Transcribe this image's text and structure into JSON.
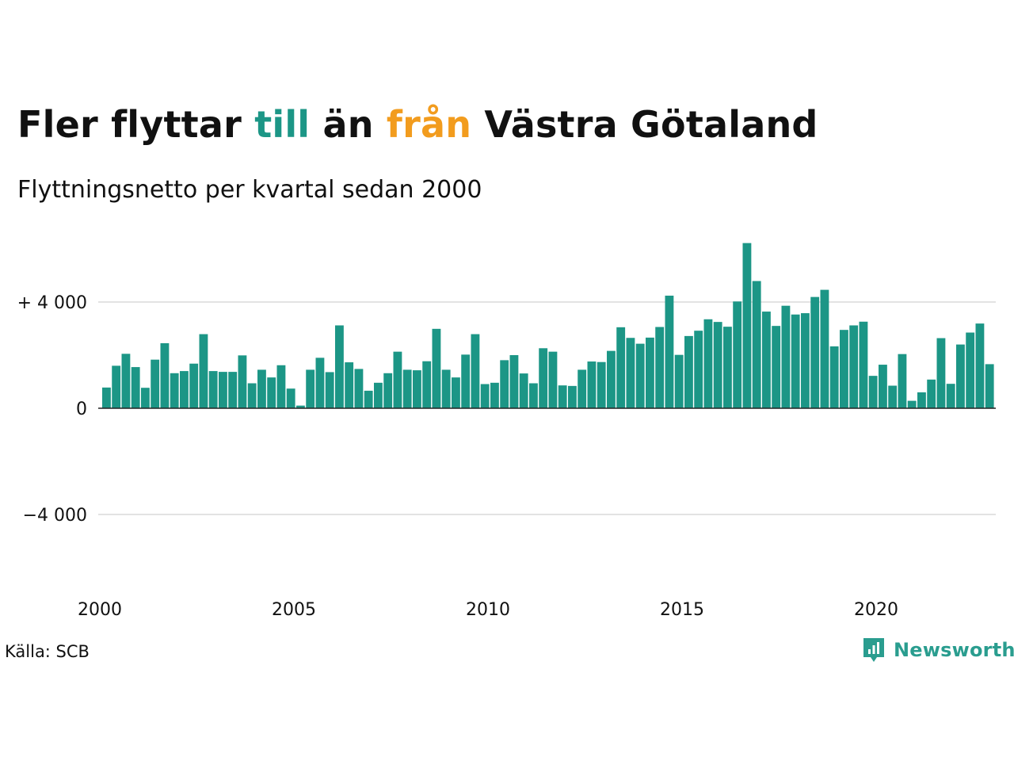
{
  "title": {
    "part1": "Fler flyttar ",
    "till": "till",
    "part2": " än ",
    "fran": "från",
    "part3": " Västra Götaland"
  },
  "subtitle": "Flyttningsnetto per kvartal sedan 2000",
  "source": "Källa: SCB",
  "logo": {
    "text": "Newsworthy",
    "icon": "newsworthy-logo-icon"
  },
  "colors": {
    "bar": "#1c9686",
    "till": "#1c9686",
    "fran": "#f29c1e",
    "grid": "#e3e3e3",
    "axis": "#222222"
  },
  "chart_data": {
    "type": "bar",
    "title": "Fler flyttar till än från Västra Götaland",
    "subtitle": "Flyttningsnetto per kvartal sedan 2000",
    "xlabel": "",
    "ylabel": "",
    "ylim": [
      -6000,
      6500
    ],
    "yticks": [
      {
        "value": 4000,
        "label": "+ 4 000"
      },
      {
        "value": 0,
        "label": "0"
      },
      {
        "value": -4000,
        "label": "−4 000"
      }
    ],
    "xlim": [
      2000,
      2023.25
    ],
    "xticks": [
      {
        "value": 2000,
        "label": "2000"
      },
      {
        "value": 2005,
        "label": "2005"
      },
      {
        "value": 2010,
        "label": "2010"
      },
      {
        "value": 2015,
        "label": "2015"
      },
      {
        "value": 2020,
        "label": "2020"
      }
    ],
    "grid": true,
    "legend": "none",
    "start_year": 2000,
    "values": [
      780,
      1600,
      2050,
      1550,
      770,
      1830,
      2450,
      1320,
      1400,
      1680,
      2790,
      1400,
      1370,
      1370,
      1990,
      940,
      1450,
      1160,
      1620,
      740,
      100,
      1450,
      1900,
      1360,
      3120,
      1730,
      1480,
      660,
      960,
      1320,
      2130,
      1450,
      1430,
      1770,
      2990,
      1450,
      1160,
      2020,
      2790,
      910,
      960,
      1810,
      2000,
      1310,
      940,
      2260,
      2130,
      860,
      840,
      1450,
      1760,
      1740,
      2160,
      3050,
      2650,
      2430,
      2660,
      3060,
      4240,
      2010,
      2720,
      2920,
      3350,
      3250,
      3070,
      4020,
      6220,
      4790,
      3640,
      3100,
      3860,
      3530,
      3580,
      4190,
      4460,
      2330,
      2950,
      3120,
      3260,
      1220,
      1640,
      850,
      2040,
      280,
      600,
      1080,
      2640,
      920,
      2400,
      2850,
      3190,
      1660
    ]
  }
}
